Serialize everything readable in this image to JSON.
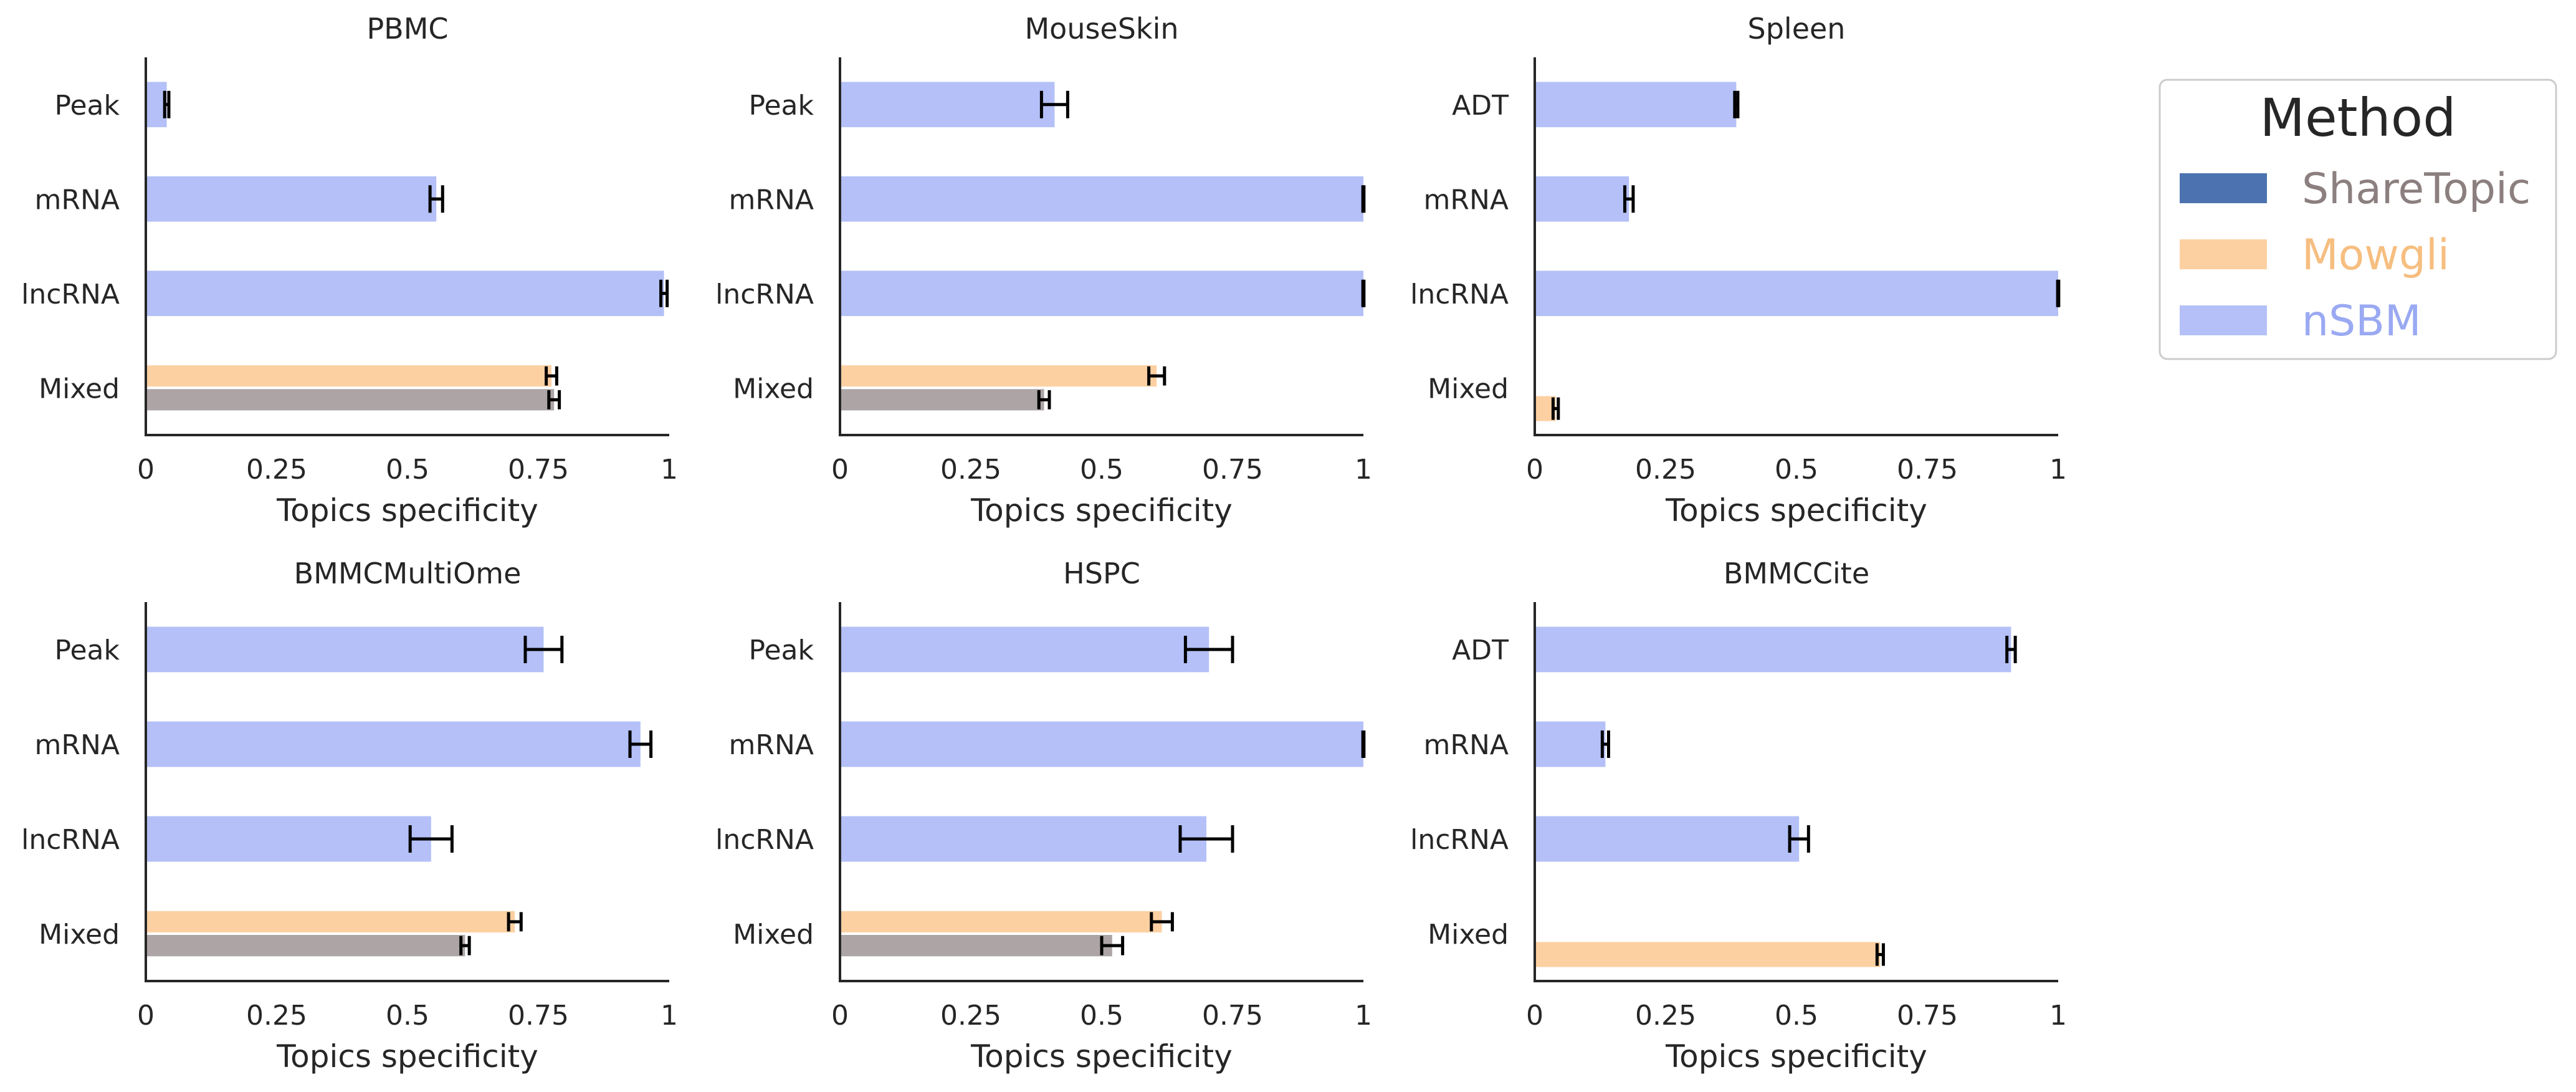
{
  "chart_data": [
    {
      "type": "bar",
      "orientation": "horizontal",
      "title": "PBMC",
      "xlabel": "Topics specificity",
      "xlim": [
        0,
        1
      ],
      "xticks": [
        0,
        0.25,
        0.5,
        0.75,
        1
      ],
      "xtick_labels": [
        "0",
        "0.25",
        "0.5",
        "0.75",
        "1"
      ],
      "categories": [
        "Peak",
        "mRNA",
        "lncRNA",
        "Mixed"
      ],
      "series": [
        {
          "method": "nSBM",
          "values": [
            0.04,
            0.555,
            0.99,
            null
          ],
          "errors": [
            0.004,
            0.012,
            0.006,
            null
          ]
        },
        {
          "method": "Mowgli",
          "values": [
            null,
            null,
            null,
            0.775
          ],
          "errors": [
            null,
            null,
            null,
            0.01
          ]
        },
        {
          "method": "ShareTopic",
          "values": [
            null,
            null,
            null,
            0.78
          ],
          "errors": [
            null,
            null,
            null,
            0.01
          ]
        }
      ]
    },
    {
      "type": "bar",
      "orientation": "horizontal",
      "title": "MouseSkin",
      "xlabel": "Topics specificity",
      "xlim": [
        0,
        1
      ],
      "xticks": [
        0,
        0.25,
        0.5,
        0.75,
        1
      ],
      "xtick_labels": [
        "0",
        "0.25",
        "0.5",
        "0.75",
        "1"
      ],
      "categories": [
        "Peak",
        "mRNA",
        "lncRNA",
        "Mixed"
      ],
      "series": [
        {
          "method": "nSBM",
          "values": [
            0.41,
            1.0,
            1.0,
            null
          ],
          "errors": [
            0.025,
            0.001,
            0.001,
            null
          ]
        },
        {
          "method": "Mowgli",
          "values": [
            null,
            null,
            null,
            0.605
          ],
          "errors": [
            null,
            null,
            null,
            0.015
          ]
        },
        {
          "method": "ShareTopic",
          "values": [
            null,
            null,
            null,
            0.39
          ],
          "errors": [
            null,
            null,
            null,
            0.01
          ]
        }
      ]
    },
    {
      "type": "bar",
      "orientation": "horizontal",
      "title": "Spleen",
      "xlabel": "Topics specificity",
      "xlim": [
        0,
        1
      ],
      "xticks": [
        0,
        0.25,
        0.5,
        0.75,
        1
      ],
      "xtick_labels": [
        "0",
        "0.25",
        "0.5",
        "0.75",
        "1"
      ],
      "categories": [
        "ADT",
        "mRNA",
        "lncRNA",
        "Mixed"
      ],
      "series": [
        {
          "method": "nSBM",
          "values": [
            0.385,
            0.18,
            1.0,
            null
          ],
          "errors": [
            0.003,
            0.008,
            0.001,
            null
          ]
        },
        {
          "method": "Mowgli",
          "values": [
            null,
            null,
            null,
            0.04
          ],
          "errors": [
            null,
            null,
            null,
            0.005
          ]
        },
        {
          "method": "ShareTopic",
          "values": [
            null,
            null,
            null,
            null
          ],
          "errors": [
            null,
            null,
            null,
            null
          ]
        }
      ]
    },
    {
      "type": "bar",
      "orientation": "horizontal",
      "title": "BMMCMultiOme",
      "xlabel": "Topics specificity",
      "xlim": [
        0,
        1
      ],
      "xticks": [
        0,
        0.25,
        0.5,
        0.75,
        1
      ],
      "xtick_labels": [
        "0",
        "0.25",
        "0.5",
        "0.75",
        "1"
      ],
      "categories": [
        "Peak",
        "mRNA",
        "lncRNA",
        "Mixed"
      ],
      "series": [
        {
          "method": "nSBM",
          "values": [
            0.76,
            0.945,
            0.545,
            null
          ],
          "errors": [
            0.035,
            0.02,
            0.04,
            null
          ]
        },
        {
          "method": "Mowgli",
          "values": [
            null,
            null,
            null,
            0.705
          ],
          "errors": [
            null,
            null,
            null,
            0.012
          ]
        },
        {
          "method": "ShareTopic",
          "values": [
            null,
            null,
            null,
            0.61
          ],
          "errors": [
            null,
            null,
            null,
            0.008
          ]
        }
      ]
    },
    {
      "type": "bar",
      "orientation": "horizontal",
      "title": "HSPC",
      "xlabel": "Topics specificity",
      "xlim": [
        0,
        1
      ],
      "xticks": [
        0,
        0.25,
        0.5,
        0.75,
        1
      ],
      "xtick_labels": [
        "0",
        "0.25",
        "0.5",
        "0.75",
        "1"
      ],
      "categories": [
        "Peak",
        "mRNA",
        "lncRNA",
        "Mixed"
      ],
      "series": [
        {
          "method": "nSBM",
          "values": [
            0.705,
            1.0,
            0.7,
            null
          ],
          "errors": [
            0.045,
            0.001,
            0.05,
            null
          ]
        },
        {
          "method": "Mowgli",
          "values": [
            null,
            null,
            null,
            0.615
          ],
          "errors": [
            null,
            null,
            null,
            0.02
          ]
        },
        {
          "method": "ShareTopic",
          "values": [
            null,
            null,
            null,
            0.52
          ],
          "errors": [
            null,
            null,
            null,
            0.02
          ]
        }
      ]
    },
    {
      "type": "bar",
      "orientation": "horizontal",
      "title": "BMMCCite",
      "xlabel": "Topics specificity",
      "xlim": [
        0,
        1
      ],
      "xticks": [
        0,
        0.25,
        0.5,
        0.75,
        1
      ],
      "xtick_labels": [
        "0",
        "0.25",
        "0.5",
        "0.75",
        "1"
      ],
      "categories": [
        "ADT",
        "mRNA",
        "lncRNA",
        "Mixed"
      ],
      "series": [
        {
          "method": "nSBM",
          "values": [
            0.91,
            0.135,
            0.505,
            null
          ],
          "errors": [
            0.008,
            0.006,
            0.018,
            null
          ]
        },
        {
          "method": "Mowgli",
          "values": [
            null,
            null,
            null,
            0.66
          ],
          "errors": [
            null,
            null,
            null,
            0.006
          ]
        },
        {
          "method": "ShareTopic",
          "values": [
            null,
            null,
            null,
            null
          ],
          "errors": [
            null,
            null,
            null,
            null
          ]
        }
      ]
    }
  ],
  "legend": {
    "title": "Method",
    "placement": "right",
    "entries": [
      {
        "key": "ShareTopic",
        "label": "ShareTopic",
        "swatch_color": "#4c72b0",
        "text_color": "#8c7f7f"
      },
      {
        "key": "Mowgli",
        "label": "Mowgli",
        "swatch_color": "#fdd0a2",
        "text_color": "#f6be80"
      },
      {
        "key": "nSBM",
        "label": "nSBM",
        "swatch_color": "#b4c0f7",
        "text_color": "#9aa9f2"
      }
    ]
  },
  "colors": {
    "nSBM": "#b4c0f7",
    "Mowgli": "#fdd0a2",
    "ShareTopic_bar": "#ada5a5",
    "axis": "#262626",
    "error_bar": "#000000"
  }
}
